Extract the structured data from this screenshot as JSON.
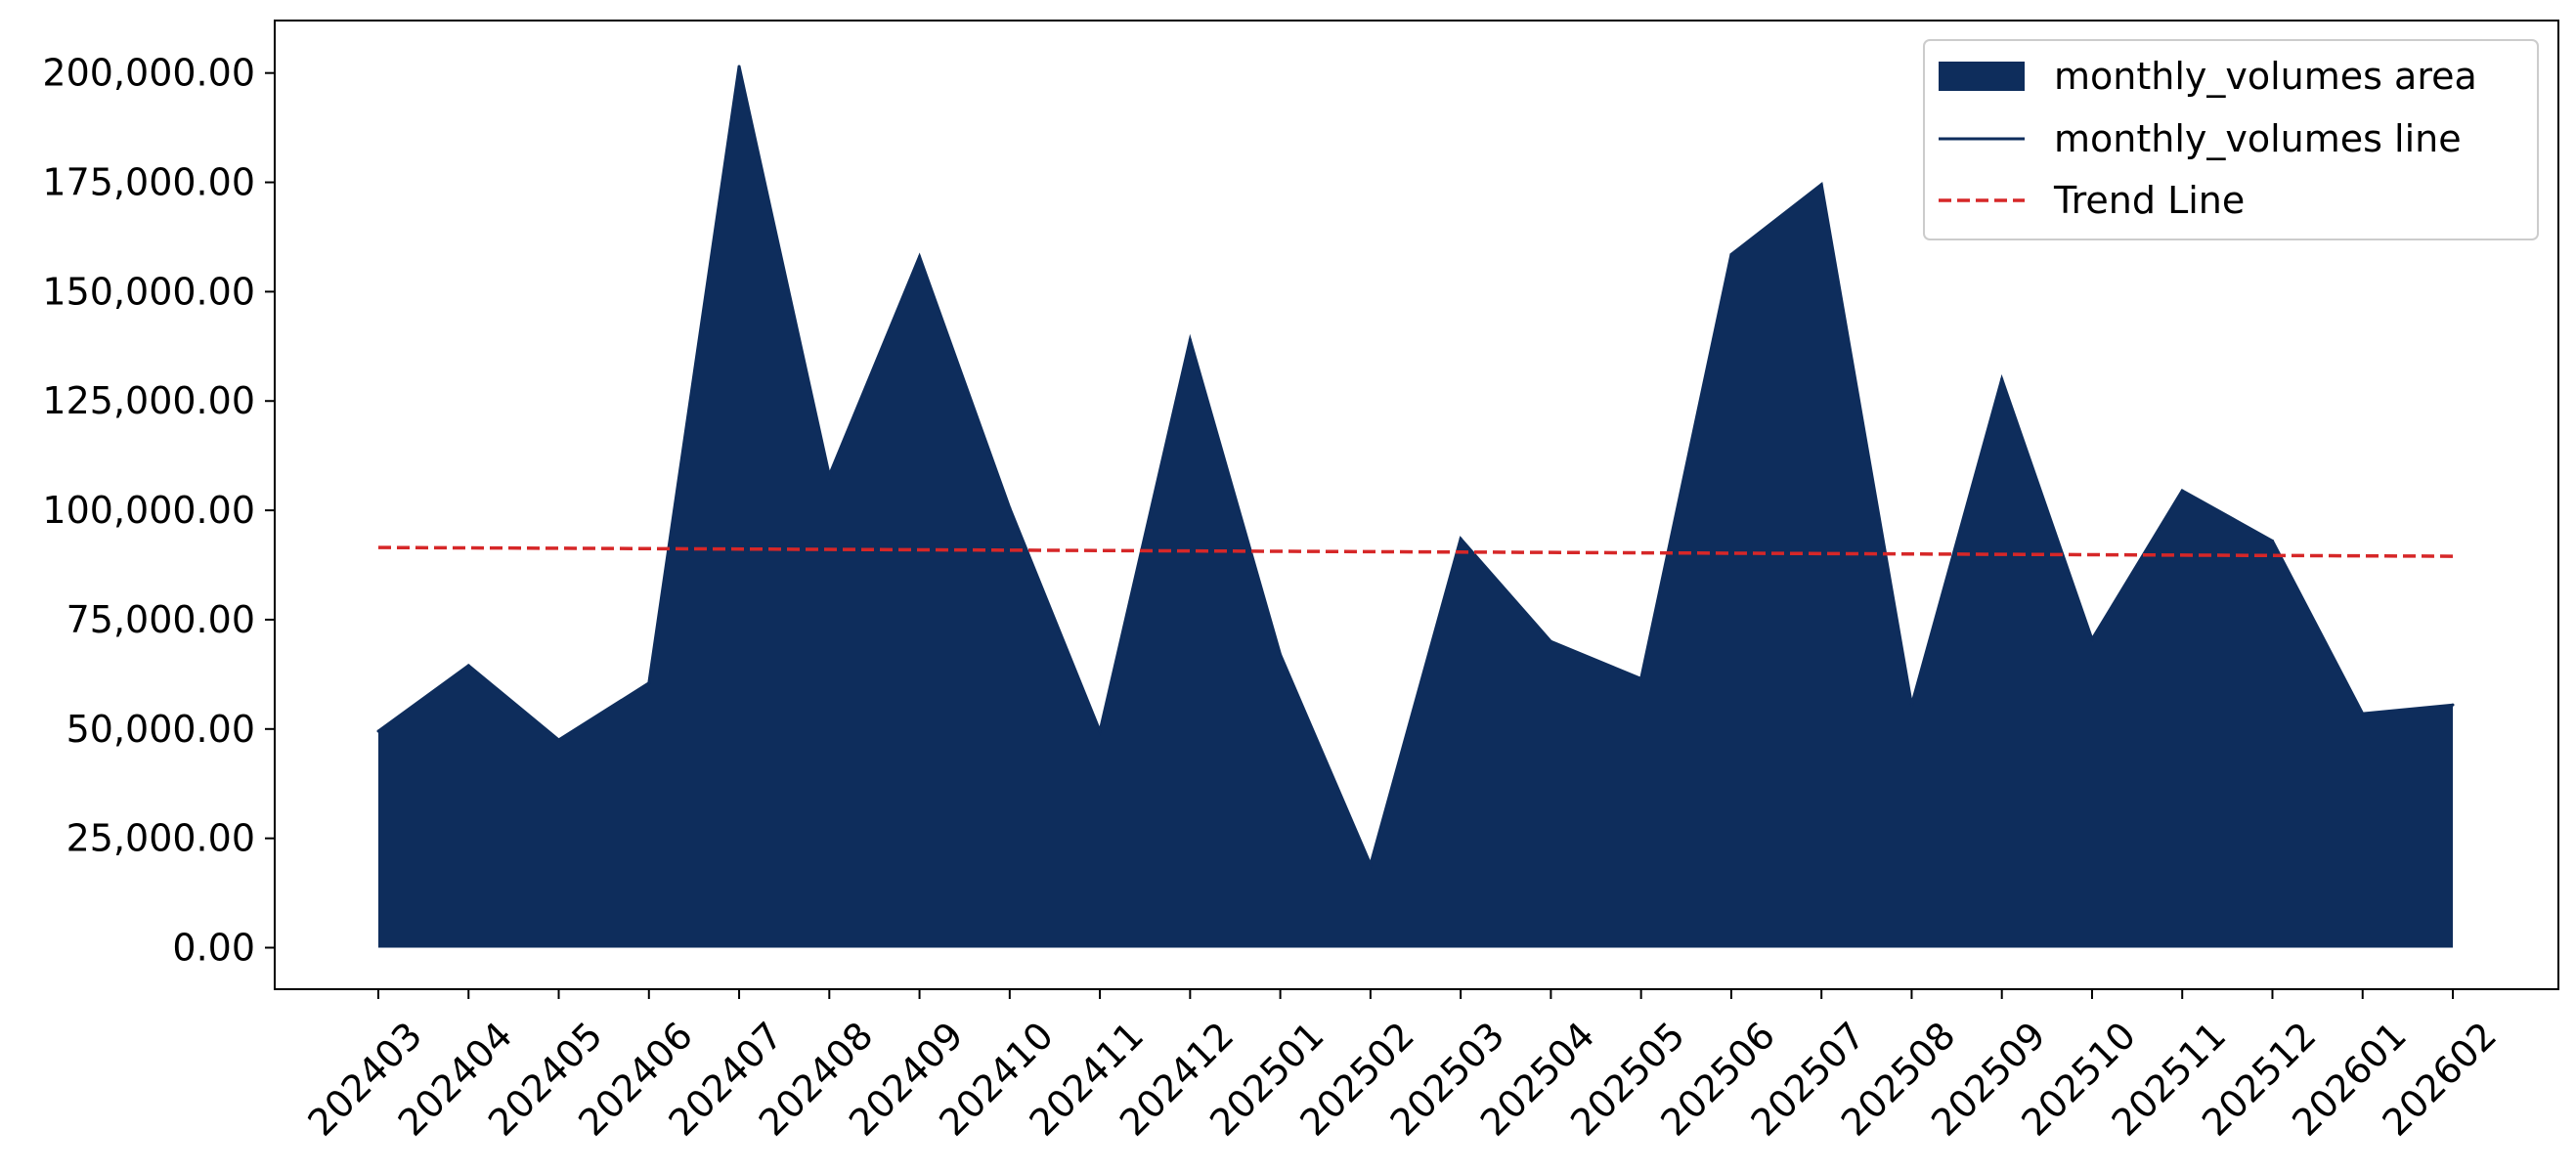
{
  "chart_data": {
    "type": "area",
    "categories": [
      "202403",
      "202404",
      "202405",
      "202406",
      "202407",
      "202408",
      "202409",
      "202410",
      "202411",
      "202412",
      "202501",
      "202502",
      "202503",
      "202504",
      "202505",
      "202506",
      "202507",
      "202508",
      "202509",
      "202510",
      "202511",
      "202512",
      "202601",
      "202602"
    ],
    "series": [
      {
        "name": "monthly_volumes area",
        "kind": "area",
        "values": [
          49500,
          64500,
          47500,
          60500,
          201500,
          108000,
          158000,
          100500,
          49500,
          139000,
          67000,
          19000,
          93500,
          70000,
          61500,
          158500,
          174500,
          55500,
          130000,
          70500,
          104500,
          93000,
          53500,
          55500
        ]
      },
      {
        "name": "monthly_volumes line",
        "kind": "line",
        "values": [
          49500,
          64500,
          47500,
          60500,
          201500,
          108000,
          158000,
          100500,
          49500,
          139000,
          67000,
          19000,
          93500,
          70000,
          61500,
          158500,
          174500,
          55500,
          130000,
          70500,
          104500,
          93000,
          53500,
          55500
        ]
      },
      {
        "name": "Trend Line",
        "kind": "trend",
        "start": 91500,
        "end": 89500
      }
    ],
    "yticks": [
      0,
      25000,
      50000,
      75000,
      100000,
      125000,
      150000,
      175000,
      200000
    ],
    "ytick_labels": [
      "0.00",
      "25,000.00",
      "50,000.00",
      "75,000.00",
      "100,000.00",
      "125,000.00",
      "150,000.00",
      "175,000.00",
      "200,000.00"
    ],
    "ylim": [
      -9500,
      212000
    ],
    "xlabel": "",
    "ylabel": "",
    "title": "",
    "grid": false,
    "legend_position": "top-right",
    "colors": {
      "area": "#0e2d5c",
      "line": "#0e2d5c",
      "trend": "#d62728"
    }
  }
}
